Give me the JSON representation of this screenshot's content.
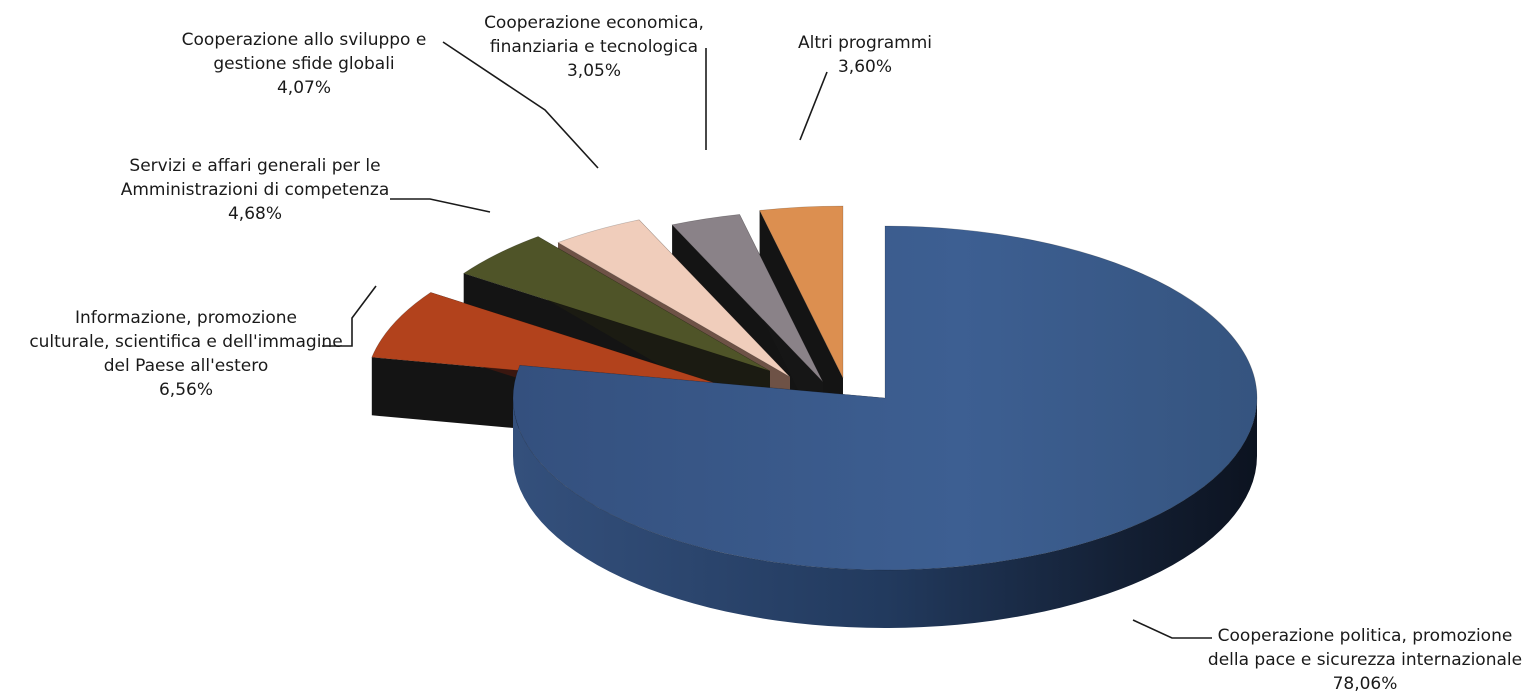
{
  "chart_data": {
    "type": "pie",
    "title": "",
    "exploded_3d": true,
    "legend": "none",
    "unit": "%",
    "slices": [
      {
        "name_lines": [
          "Cooperazione politica, promozione",
          "della pace e sicurezza internazionale"
        ],
        "value": 78.06,
        "value_label": "78,06%",
        "color": "#3a5a8c"
      },
      {
        "name_lines": [
          "Informazione, promozione",
          "culturale, scientifica e dell'immagine",
          "del Paese all'estero"
        ],
        "value": 6.56,
        "value_label": "6,56%",
        "color": "#b2421c"
      },
      {
        "name_lines": [
          "Servizi e affari generali per le",
          "Amministrazioni di competenza"
        ],
        "value": 4.68,
        "value_label": "4,68%",
        "color": "#4f5428"
      },
      {
        "name_lines": [
          "Cooperazione allo sviluppo e",
          "gestione sfide globali"
        ],
        "value": 4.07,
        "value_label": "4,07%",
        "color": "#f0cdbb"
      },
      {
        "name_lines": [
          "Cooperazione economica,",
          "finanziaria e tecnologica"
        ],
        "value": 3.05,
        "value_label": "3,05%",
        "color": "#8a8288"
      },
      {
        "name_lines": [
          "Altri programmi"
        ],
        "value": 3.6,
        "value_label": "3,60%",
        "color": "#dc8f50"
      }
    ]
  }
}
